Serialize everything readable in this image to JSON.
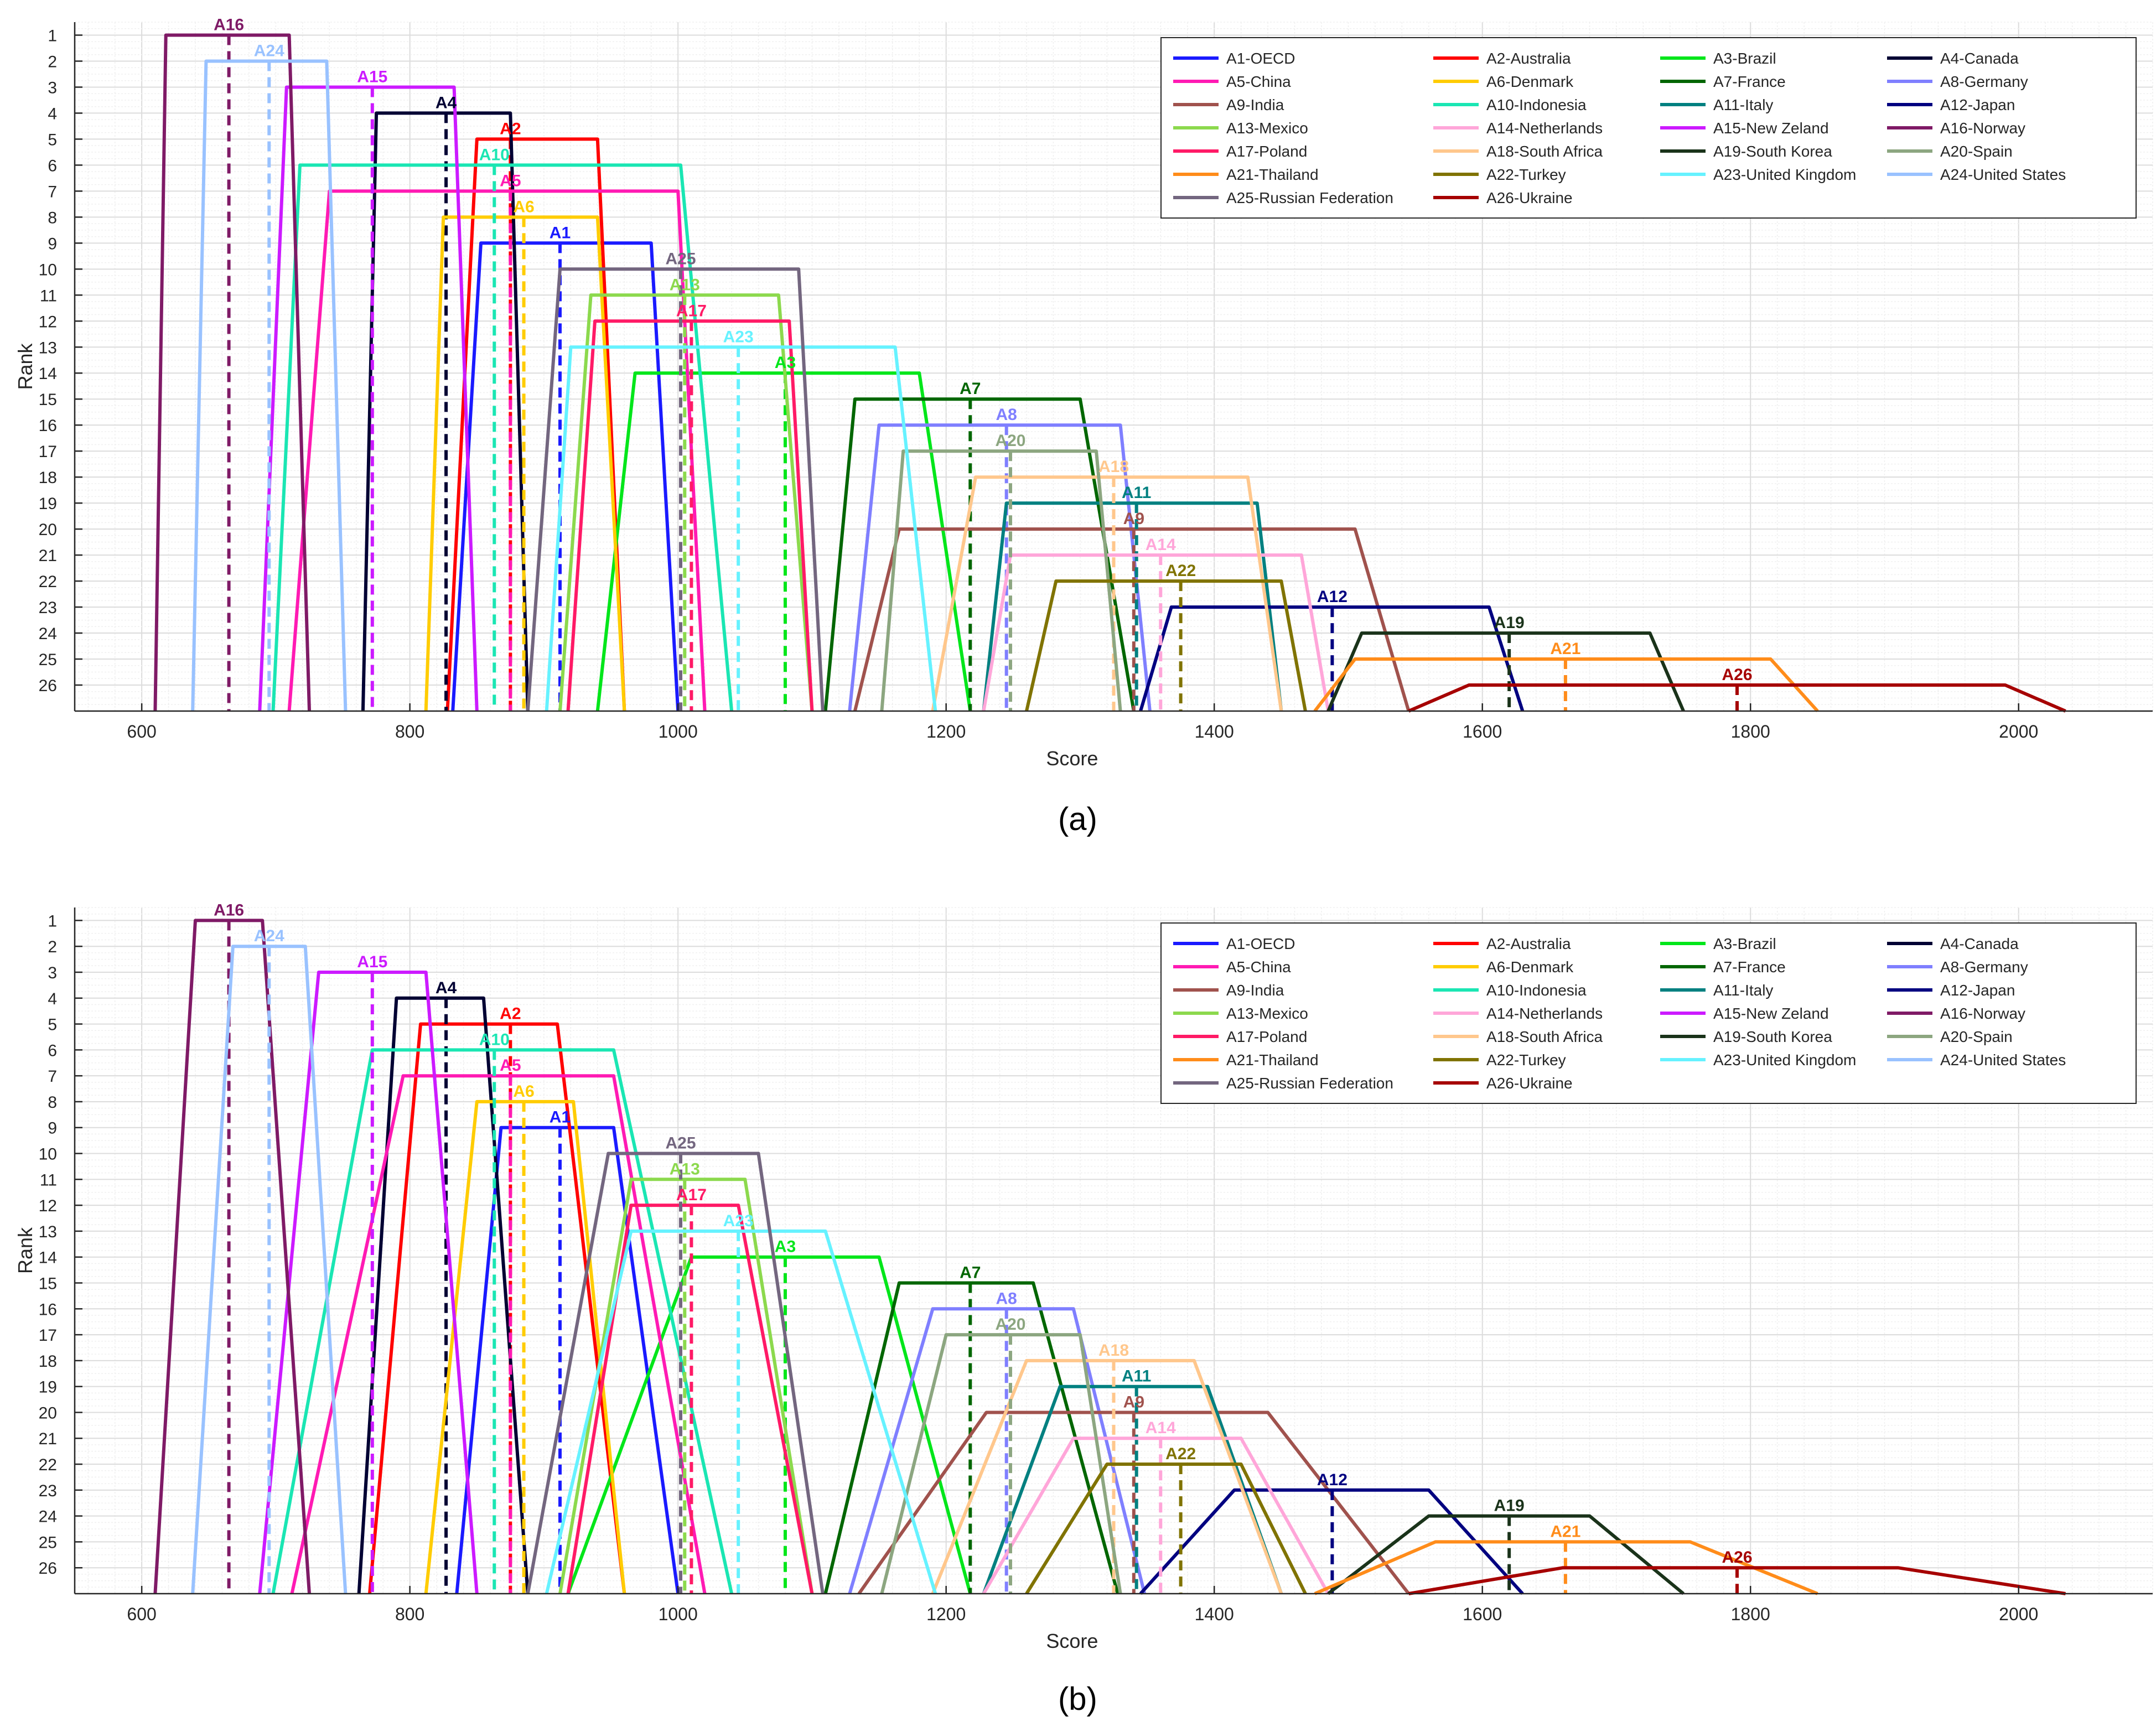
{
  "figure": {
    "panel_labels": [
      "(a)",
      "(b)"
    ]
  },
  "chart_data": [
    {
      "type": "line",
      "panel": "(a)",
      "xlabel": "Score",
      "ylabel": "Rank",
      "xlim": [
        550,
        2100
      ],
      "ylim": [
        27,
        0.5
      ],
      "xticks": [
        600,
        800,
        1000,
        1200,
        1400,
        1600,
        1800,
        2000
      ],
      "yticks": [
        1,
        2,
        3,
        4,
        5,
        6,
        7,
        8,
        9,
        10,
        11,
        12,
        13,
        14,
        15,
        16,
        17,
        18,
        19,
        20,
        21,
        22,
        23,
        24,
        25,
        26
      ],
      "grid": true,
      "legend_position": "top-right",
      "series": [
        {
          "id": "A1",
          "name": "A1-OECD",
          "color": "#1a1aff",
          "rank": 9,
          "trap": [
            832,
            853,
            980,
            1000
          ],
          "center": 912
        },
        {
          "id": "A2",
          "name": "A2-Australia",
          "color": "#ff0000",
          "rank": 5,
          "trap": [
            828,
            850,
            940,
            960
          ],
          "center": 875
        },
        {
          "id": "A3",
          "name": "A3-Brazil",
          "color": "#00e61a",
          "rank": 14,
          "trap": [
            940,
            968,
            1180,
            1218
          ],
          "center": 1080
        },
        {
          "id": "A4",
          "name": "A4-Canada",
          "color": "#000033",
          "rank": 4,
          "trap": [
            765,
            775,
            875,
            888
          ],
          "center": 827
        },
        {
          "id": "A5",
          "name": "A5-China",
          "color": "#ff1ab3",
          "rank": 7,
          "trap": [
            710,
            740,
            1000,
            1020
          ],
          "center": 875
        },
        {
          "id": "A6",
          "name": "A6-Denmark",
          "color": "#ffcc00",
          "rank": 8,
          "trap": [
            812,
            825,
            940,
            960
          ],
          "center": 885
        },
        {
          "id": "A7",
          "name": "A7-France",
          "color": "#006600",
          "rank": 15,
          "trap": [
            1110,
            1132,
            1300,
            1340
          ],
          "center": 1218
        },
        {
          "id": "A8",
          "name": "A8-Germany",
          "color": "#7f7fff",
          "rank": 16,
          "trap": [
            1128,
            1150,
            1330,
            1352
          ],
          "center": 1245
        },
        {
          "id": "A9",
          "name": "A9-India",
          "color": "#a0524d",
          "rank": 20,
          "trap": [
            1132,
            1165,
            1505,
            1545
          ],
          "center": 1340
        },
        {
          "id": "A10",
          "name": "A10-Indonesia",
          "color": "#1ae6b3",
          "rank": 6,
          "trap": [
            698,
            718,
            1002,
            1040
          ],
          "center": 863
        },
        {
          "id": "A11",
          "name": "A11-Italy",
          "color": "#008080",
          "rank": 19,
          "trap": [
            1228,
            1245,
            1432,
            1450
          ],
          "center": 1342
        },
        {
          "id": "A12",
          "name": "A12-Japan",
          "color": "#000080",
          "rank": 23,
          "trap": [
            1345,
            1368,
            1605,
            1630
          ],
          "center": 1488
        },
        {
          "id": "A13",
          "name": "A13-Mexico",
          "color": "#8cd94d",
          "rank": 11,
          "trap": [
            912,
            935,
            1075,
            1100
          ],
          "center": 1005
        },
        {
          "id": "A14",
          "name": "A14-Netherlands",
          "color": "#ffa6d9",
          "rank": 21,
          "trap": [
            1228,
            1248,
            1465,
            1485
          ],
          "center": 1360
        },
        {
          "id": "A15",
          "name": "A15-New Zeland",
          "color": "#cc1aff",
          "rank": 3,
          "trap": [
            688,
            708,
            833,
            850
          ],
          "center": 772
        },
        {
          "id": "A16",
          "name": "A16-Norway",
          "color": "#7f1a66",
          "rank": 1,
          "trap": [
            610,
            618,
            710,
            725
          ],
          "center": 665
        },
        {
          "id": "A17",
          "name": "A17-Poland",
          "color": "#ff1a66",
          "rank": 12,
          "trap": [
            918,
            938,
            1083,
            1100
          ],
          "center": 1010
        },
        {
          "id": "A18",
          "name": "A18-South Africa",
          "color": "#ffc78c",
          "rank": 18,
          "trap": [
            1190,
            1222,
            1425,
            1450
          ],
          "center": 1325
        },
        {
          "id": "A19",
          "name": "A19-South Korea",
          "color": "#1a331a",
          "rank": 24,
          "trap": [
            1485,
            1510,
            1725,
            1750
          ],
          "center": 1620
        },
        {
          "id": "A20",
          "name": "A20-Spain",
          "color": "#8ca680",
          "rank": 17,
          "trap": [
            1152,
            1168,
            1312,
            1330
          ],
          "center": 1248
        },
        {
          "id": "A21",
          "name": "A21-Thailand",
          "color": "#ff8c1a",
          "rank": 25,
          "trap": [
            1475,
            1505,
            1815,
            1850
          ],
          "center": 1662
        },
        {
          "id": "A22",
          "name": "A22-Turkey",
          "color": "#807300",
          "rank": 22,
          "trap": [
            1260,
            1282,
            1450,
            1468
          ],
          "center": 1375
        },
        {
          "id": "A23",
          "name": "A23-United Kingdom",
          "color": "#66f2ff",
          "rank": 13,
          "trap": [
            902,
            920,
            1162,
            1192
          ],
          "center": 1045
        },
        {
          "id": "A24",
          "name": "A24-United States",
          "color": "#99c2ff",
          "rank": 2,
          "trap": [
            638,
            648,
            738,
            752
          ],
          "center": 695
        },
        {
          "id": "A25",
          "name": "A25-Russian Federation",
          "color": "#73667f",
          "rank": 10,
          "trap": [
            888,
            912,
            1090,
            1108
          ],
          "center": 1002
        },
        {
          "id": "A26",
          "name": "A26-Ukraine",
          "color": "#a60000",
          "rank": 26,
          "trap": [
            1545,
            1590,
            1990,
            2035
          ],
          "center": 1790
        }
      ]
    },
    {
      "type": "line",
      "panel": "(b)",
      "xlabel": "Score",
      "ylabel": "Rank",
      "xlim": [
        550,
        2100
      ],
      "ylim": [
        27,
        0.5
      ],
      "xticks": [
        600,
        800,
        1000,
        1200,
        1400,
        1600,
        1800,
        2000
      ],
      "yticks": [
        1,
        2,
        3,
        4,
        5,
        6,
        7,
        8,
        9,
        10,
        11,
        12,
        13,
        14,
        15,
        16,
        17,
        18,
        19,
        20,
        21,
        22,
        23,
        24,
        25,
        26
      ],
      "grid": true,
      "legend_position": "top-right",
      "series": [
        {
          "id": "A1",
          "name": "A1-OECD",
          "color": "#1a1aff",
          "rank": 9,
          "trap": [
            835,
            868,
            952,
            1000
          ],
          "center": 912
        },
        {
          "id": "A2",
          "name": "A2-Australia",
          "color": "#ff0000",
          "rank": 5,
          "trap": [
            770,
            808,
            910,
            960
          ],
          "center": 875
        },
        {
          "id": "A3",
          "name": "A3-Brazil",
          "color": "#00e61a",
          "rank": 14,
          "trap": [
            918,
            1010,
            1150,
            1218
          ],
          "center": 1080
        },
        {
          "id": "A4",
          "name": "A4-Canada",
          "color": "#000033",
          "rank": 4,
          "trap": [
            762,
            790,
            855,
            888
          ],
          "center": 827
        },
        {
          "id": "A5",
          "name": "A5-China",
          "color": "#ff1ab3",
          "rank": 7,
          "trap": [
            712,
            795,
            952,
            1020
          ],
          "center": 875
        },
        {
          "id": "A6",
          "name": "A6-Denmark",
          "color": "#ffcc00",
          "rank": 8,
          "trap": [
            812,
            850,
            922,
            960
          ],
          "center": 885
        },
        {
          "id": "A7",
          "name": "A7-France",
          "color": "#006600",
          "rank": 15,
          "trap": [
            1110,
            1165,
            1265,
            1328
          ],
          "center": 1218
        },
        {
          "id": "A8",
          "name": "A8-Germany",
          "color": "#7f7fff",
          "rank": 16,
          "trap": [
            1128,
            1190,
            1295,
            1348
          ],
          "center": 1245
        },
        {
          "id": "A9",
          "name": "A9-India",
          "color": "#a0524d",
          "rank": 20,
          "trap": [
            1135,
            1230,
            1440,
            1545
          ],
          "center": 1340
        },
        {
          "id": "A10",
          "name": "A10-Indonesia",
          "color": "#1ae6b3",
          "rank": 6,
          "trap": [
            698,
            772,
            952,
            1040
          ],
          "center": 863
        },
        {
          "id": "A11",
          "name": "A11-Italy",
          "color": "#008080",
          "rank": 19,
          "trap": [
            1228,
            1285,
            1395,
            1450
          ],
          "center": 1342
        },
        {
          "id": "A12",
          "name": "A12-Japan",
          "color": "#000080",
          "rank": 23,
          "trap": [
            1345,
            1415,
            1560,
            1630
          ],
          "center": 1488
        },
        {
          "id": "A13",
          "name": "A13-Mexico",
          "color": "#8cd94d",
          "rank": 11,
          "trap": [
            912,
            965,
            1050,
            1100
          ],
          "center": 1005
        },
        {
          "id": "A14",
          "name": "A14-Netherlands",
          "color": "#ffa6d9",
          "rank": 21,
          "trap": [
            1228,
            1295,
            1420,
            1485
          ],
          "center": 1360
        },
        {
          "id": "A15",
          "name": "A15-New Zeland",
          "color": "#cc1aff",
          "rank": 3,
          "trap": [
            688,
            732,
            812,
            850
          ],
          "center": 772
        },
        {
          "id": "A16",
          "name": "A16-Norway",
          "color": "#7f1a66",
          "rank": 1,
          "trap": [
            610,
            640,
            690,
            725
          ],
          "center": 665
        },
        {
          "id": "A17",
          "name": "A17-Poland",
          "color": "#ff1a66",
          "rank": 12,
          "trap": [
            918,
            965,
            1045,
            1100
          ],
          "center": 1010
        },
        {
          "id": "A18",
          "name": "A18-South Africa",
          "color": "#ffc78c",
          "rank": 18,
          "trap": [
            1190,
            1260,
            1385,
            1450
          ],
          "center": 1325
        },
        {
          "id": "A19",
          "name": "A19-South Korea",
          "color": "#1a331a",
          "rank": 24,
          "trap": [
            1485,
            1560,
            1680,
            1750
          ],
          "center": 1620
        },
        {
          "id": "A20",
          "name": "A20-Spain",
          "color": "#8ca680",
          "rank": 17,
          "trap": [
            1152,
            1200,
            1300,
            1330
          ],
          "center": 1248
        },
        {
          "id": "A21",
          "name": "A21-Thailand",
          "color": "#ff8c1a",
          "rank": 25,
          "trap": [
            1475,
            1565,
            1755,
            1850
          ],
          "center": 1662
        },
        {
          "id": "A22",
          "name": "A22-Turkey",
          "color": "#807300",
          "rank": 22,
          "trap": [
            1260,
            1320,
            1420,
            1468
          ],
          "center": 1375
        },
        {
          "id": "A23",
          "name": "A23-United Kingdom",
          "color": "#66f2ff",
          "rank": 13,
          "trap": [
            902,
            965,
            1110,
            1192
          ],
          "center": 1045
        },
        {
          "id": "A24",
          "name": "A24-United States",
          "color": "#99c2ff",
          "rank": 2,
          "trap": [
            638,
            668,
            722,
            752
          ],
          "center": 695
        },
        {
          "id": "A25",
          "name": "A25-Russian Federation",
          "color": "#73667f",
          "rank": 10,
          "trap": [
            888,
            948,
            1060,
            1108
          ],
          "center": 1002
        },
        {
          "id": "A26",
          "name": "A26-Ukraine",
          "color": "#a60000",
          "rank": 26,
          "trap": [
            1545,
            1660,
            1910,
            2035
          ],
          "center": 1790
        }
      ]
    }
  ]
}
